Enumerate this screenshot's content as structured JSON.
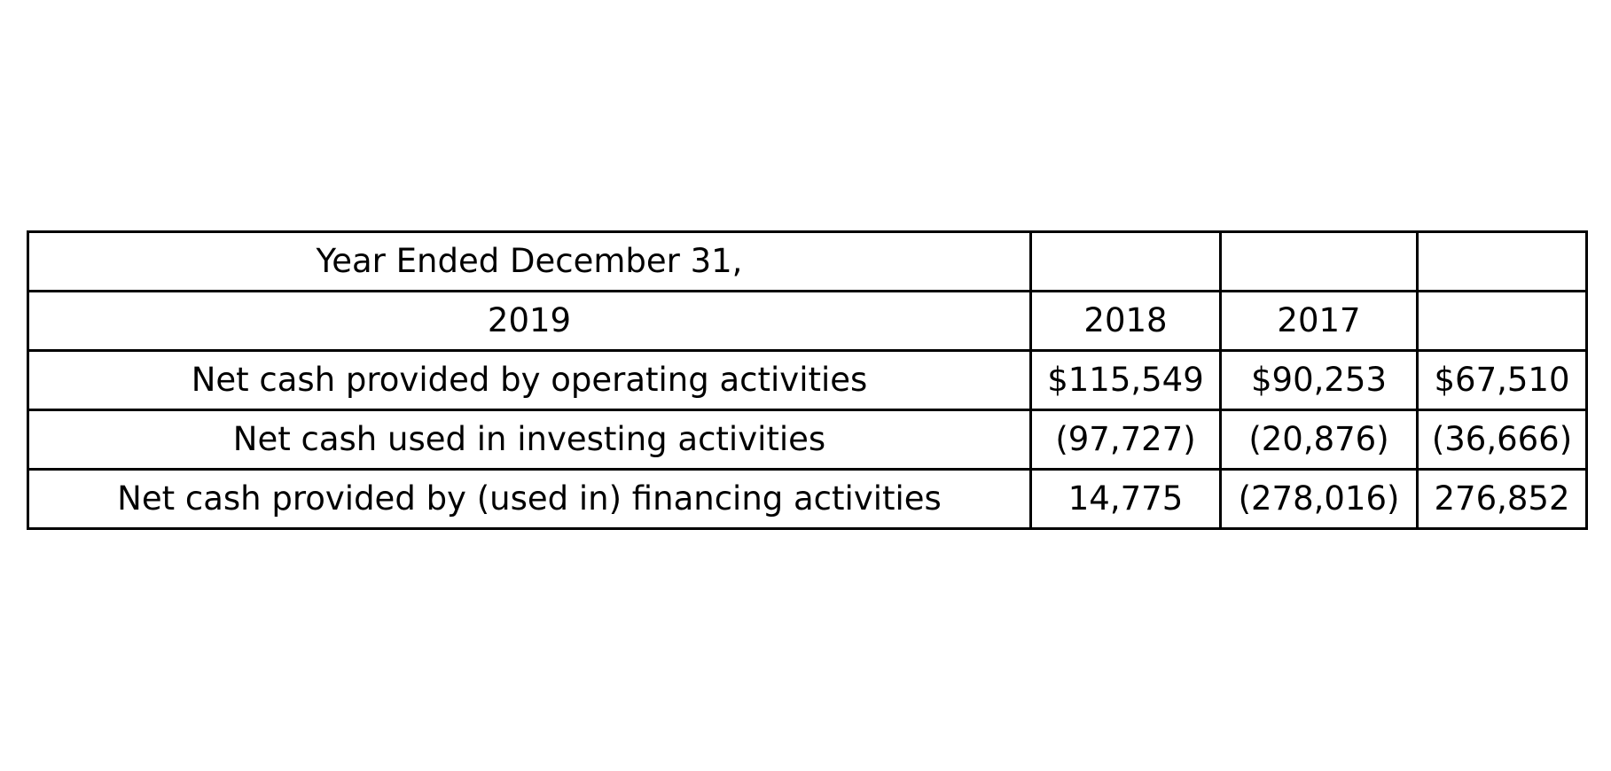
{
  "chart_data": {
    "type": "table",
    "rows": [
      [
        "Year Ended December 31,",
        "",
        "",
        ""
      ],
      [
        "2019",
        "2018",
        "2017",
        ""
      ],
      [
        "Net cash provided by operating activities",
        "$115,549",
        "$90,253",
        "$67,510"
      ],
      [
        "Net cash used in investing activities",
        "(97,727)",
        "(20,876)",
        "(36,666)"
      ],
      [
        "Net cash provided by (used in) financing activities",
        "14,775",
        "(278,016)",
        "276,852"
      ]
    ]
  }
}
